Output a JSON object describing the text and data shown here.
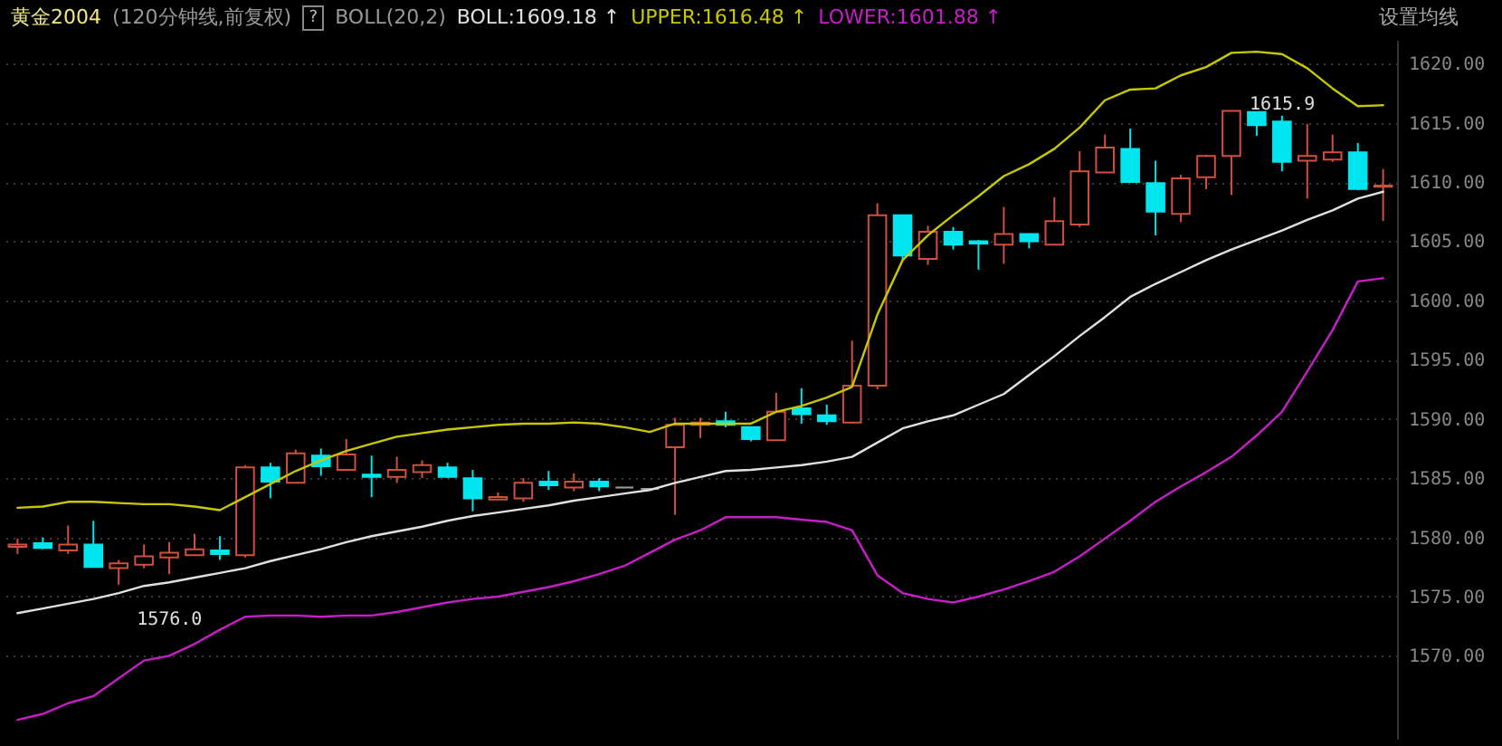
{
  "chart_data": {
    "type": "candlestick",
    "title": "黄金2004",
    "subtitle": "(120分钟线,前复权)",
    "legend_title": "BOLL(20,2)",
    "legend": "top left",
    "grid": "y",
    "annotations": [
      "1615.9",
      "1576.0",
      "?",
      "设置均线"
    ],
    "categories": [
      null,
      null,
      null,
      null,
      null,
      null,
      null,
      null,
      null,
      null,
      null,
      null,
      null,
      null,
      null,
      null,
      null,
      null,
      null,
      null,
      null,
      null,
      null,
      null,
      null,
      null,
      null,
      null,
      null,
      null,
      null,
      null,
      null,
      null,
      null,
      null,
      null,
      null,
      null,
      null,
      null,
      null,
      null,
      null,
      null,
      null,
      null,
      null,
      null,
      null,
      null,
      null,
      null,
      null,
      null
    ],
    "ylim": [
      1563,
      1622
    ],
    "yticks": [
      {
        "value": 1570,
        "label": "1570.00"
      },
      {
        "value": 1575,
        "label": "1575.00"
      },
      {
        "value": 1580,
        "label": "1580.00"
      },
      {
        "value": 1585,
        "label": "1585.00"
      },
      {
        "value": 1590,
        "label": "1590.00"
      },
      {
        "value": 1595,
        "label": "1595.00"
      },
      {
        "value": 1600,
        "label": "1600.00"
      },
      {
        "value": 1605,
        "label": "1605.00"
      },
      {
        "value": 1610,
        "label": "1610.00"
      },
      {
        "value": 1615,
        "label": "1615.00"
      },
      {
        "value": 1620,
        "label": "1620.00"
      }
    ],
    "ohlc": [
      [
        1579.2,
        1579.9,
        1578.6,
        1579.4
      ],
      [
        1579.5,
        1580.0,
        1579.0,
        1579.1
      ],
      [
        1578.9,
        1581.0,
        1578.6,
        1579.4
      ],
      [
        1579.4,
        1581.4,
        1577.5,
        1577.5
      ],
      [
        1577.4,
        1578.1,
        1576.0,
        1577.8
      ],
      [
        1577.7,
        1579.4,
        1577.4,
        1578.4
      ],
      [
        1578.3,
        1579.6,
        1576.9,
        1578.7
      ],
      [
        1578.5,
        1580.3,
        1578.5,
        1579.0
      ],
      [
        1578.9,
        1580.1,
        1578.1,
        1578.6
      ],
      [
        1578.5,
        1586.1,
        1578.3,
        1585.9
      ],
      [
        1585.9,
        1586.3,
        1583.3,
        1584.7
      ],
      [
        1584.6,
        1587.4,
        1584.6,
        1587.1
      ],
      [
        1586.9,
        1587.5,
        1585.2,
        1586.0
      ],
      [
        1585.7,
        1588.3,
        1585.7,
        1587.0
      ],
      [
        1585.3,
        1586.9,
        1583.4,
        1585.1
      ],
      [
        1585.1,
        1586.8,
        1584.6,
        1585.7
      ],
      [
        1585.5,
        1586.5,
        1585.0,
        1586.1
      ],
      [
        1585.9,
        1586.3,
        1585.0,
        1585.1
      ],
      [
        1585.0,
        1585.7,
        1582.2,
        1583.3
      ],
      [
        1583.2,
        1583.8,
        1583.2,
        1583.4
      ],
      [
        1583.3,
        1585.0,
        1583.0,
        1584.6
      ],
      [
        1584.7,
        1585.6,
        1584.0,
        1584.4
      ],
      [
        1584.2,
        1585.4,
        1583.9,
        1584.7
      ],
      [
        1584.7,
        1585.0,
        1583.9,
        1584.3
      ],
      [
        1584.2,
        1584.2,
        1584.2,
        1584.2
      ],
      [
        1584.1,
        1584.1,
        1584.1,
        1584.1
      ],
      [
        1587.6,
        1590.1,
        1581.9,
        1589.5
      ],
      [
        1589.5,
        1590.1,
        1588.4,
        1589.7
      ],
      [
        1589.8,
        1590.6,
        1589.3,
        1589.5
      ],
      [
        1589.3,
        1589.3,
        1588.1,
        1588.3
      ],
      [
        1588.2,
        1592.2,
        1588.2,
        1590.6
      ],
      [
        1590.9,
        1592.6,
        1589.6,
        1590.4
      ],
      [
        1590.3,
        1591.2,
        1589.5,
        1589.8
      ],
      [
        1589.7,
        1596.6,
        1589.6,
        1592.8
      ],
      [
        1592.8,
        1608.2,
        1592.5,
        1607.2
      ],
      [
        1607.2,
        1607.2,
        1603.4,
        1603.8
      ],
      [
        1603.5,
        1606.3,
        1603.0,
        1605.8
      ],
      [
        1605.8,
        1606.2,
        1604.3,
        1604.7
      ],
      [
        1605.0,
        1605.1,
        1602.6,
        1604.8
      ],
      [
        1604.7,
        1607.9,
        1603.1,
        1605.6
      ],
      [
        1605.6,
        1605.6,
        1604.4,
        1605.0
      ],
      [
        1604.7,
        1608.7,
        1604.7,
        1606.7
      ],
      [
        1606.4,
        1612.6,
        1606.2,
        1610.9
      ],
      [
        1610.8,
        1614.0,
        1610.8,
        1612.9
      ],
      [
        1612.8,
        1614.5,
        1610.0,
        1610.0
      ],
      [
        1609.9,
        1611.8,
        1605.5,
        1607.5
      ],
      [
        1607.3,
        1610.6,
        1606.6,
        1610.3
      ],
      [
        1610.4,
        1612.3,
        1609.4,
        1612.2
      ],
      [
        1612.2,
        1616.0,
        1608.9,
        1616.0
      ],
      [
        1615.9,
        1615.9,
        1613.9,
        1614.8
      ],
      [
        1615.1,
        1615.6,
        1610.9,
        1611.7
      ],
      [
        1611.8,
        1614.9,
        1608.6,
        1612.2
      ],
      [
        1611.9,
        1614.0,
        1611.7,
        1612.5
      ],
      [
        1612.5,
        1613.3,
        1609.3,
        1609.4
      ],
      [
        1609.6,
        1611.1,
        1606.7,
        1609.7
      ]
    ],
    "colors": [
      "#d0503c",
      "#00e5ee",
      "#d0503c",
      "#00e5ee",
      "#d0503c",
      "#d0503c",
      "#d0503c",
      "#d0503c",
      "#00e5ee",
      "#d0503c",
      "#00e5ee",
      "#d0503c",
      "#00e5ee",
      "#d0503c",
      "#00e5ee",
      "#d0503c",
      "#d0503c",
      "#00e5ee",
      "#00e5ee",
      "#d0503c",
      "#d0503c",
      "#00e5ee",
      "#d0503c",
      "#00e5ee",
      "#a0a0a0",
      "#a0a0a0",
      "#d0503c",
      "#d0503c",
      "#00e5ee",
      "#00e5ee",
      "#d0503c",
      "#00e5ee",
      "#00e5ee",
      "#d0503c",
      "#d0503c",
      "#00e5ee",
      "#d0503c",
      "#00e5ee",
      "#00e5ee",
      "#d0503c",
      "#00e5ee",
      "#d0503c",
      "#d0503c",
      "#d0503c",
      "#00e5ee",
      "#00e5ee",
      "#d0503c",
      "#d0503c",
      "#d0503c",
      "#00e5ee",
      "#00e5ee",
      "#d0503c",
      "#d0503c",
      "#00e5ee",
      "#d0503c"
    ],
    "series": [
      {
        "type": "line",
        "name": "BOLL:1609.18 ↑",
        "color": "#e0e0e0",
        "values": [
          1573.6,
          1574.0,
          1574.4,
          1574.8,
          1575.3,
          1575.9,
          1576.2,
          1576.6,
          1577.0,
          1577.4,
          1578.0,
          1578.5,
          1579.0,
          1579.6,
          1580.1,
          1580.5,
          1580.9,
          1581.4,
          1581.8,
          1582.1,
          1582.4,
          1582.7,
          1583.1,
          1583.4,
          1583.7,
          1584.0,
          1584.6,
          1585.1,
          1585.6,
          1585.7,
          1585.9,
          1586.1,
          1586.4,
          1586.8,
          1588.0,
          1589.2,
          1589.8,
          1590.3,
          1591.2,
          1592.1,
          1593.7,
          1595.3,
          1597.0,
          1598.6,
          1600.3,
          1601.4,
          1602.4,
          1603.4,
          1604.3,
          1605.1,
          1605.9,
          1606.8,
          1607.6,
          1608.6,
          1609.18
        ]
      },
      {
        "type": "line",
        "name": "UPPER:1616.48 ↑",
        "color": "#c8c800",
        "values": [
          1582.5,
          1582.6,
          1583.0,
          1583.0,
          1582.9,
          1582.8,
          1582.8,
          1582.6,
          1582.3,
          1583.4,
          1584.5,
          1585.6,
          1586.5,
          1587.3,
          1587.9,
          1588.5,
          1588.8,
          1589.1,
          1589.3,
          1589.5,
          1589.6,
          1589.6,
          1589.7,
          1589.6,
          1589.3,
          1588.9,
          1589.6,
          1589.6,
          1589.6,
          1589.6,
          1590.6,
          1591.1,
          1591.8,
          1592.7,
          1598.8,
          1603.4,
          1605.5,
          1607.2,
          1608.8,
          1610.5,
          1611.5,
          1612.8,
          1614.6,
          1616.9,
          1617.8,
          1617.9,
          1619.0,
          1619.7,
          1620.9,
          1621.0,
          1620.8,
          1619.6,
          1617.9,
          1616.4,
          1616.48
        ]
      },
      {
        "type": "line",
        "name": "LOWER:1601.88 ↑",
        "color": "#c81ec8",
        "values": [
          1564.6,
          1565.1,
          1566.0,
          1566.6,
          1568.1,
          1569.6,
          1570.0,
          1571.0,
          1572.2,
          1573.3,
          1573.4,
          1573.4,
          1573.3,
          1573.4,
          1573.4,
          1573.7,
          1574.1,
          1574.5,
          1574.8,
          1575.0,
          1575.4,
          1575.8,
          1576.3,
          1576.9,
          1577.6,
          1578.7,
          1579.8,
          1580.6,
          1581.7,
          1581.7,
          1581.7,
          1581.5,
          1581.3,
          1580.6,
          1576.8,
          1575.3,
          1574.8,
          1574.5,
          1575.0,
          1575.6,
          1576.3,
          1577.1,
          1578.4,
          1579.9,
          1581.4,
          1583.0,
          1584.3,
          1585.5,
          1586.8,
          1588.6,
          1590.6,
          1594.0,
          1597.5,
          1601.6,
          1601.88
        ]
      }
    ]
  }
}
